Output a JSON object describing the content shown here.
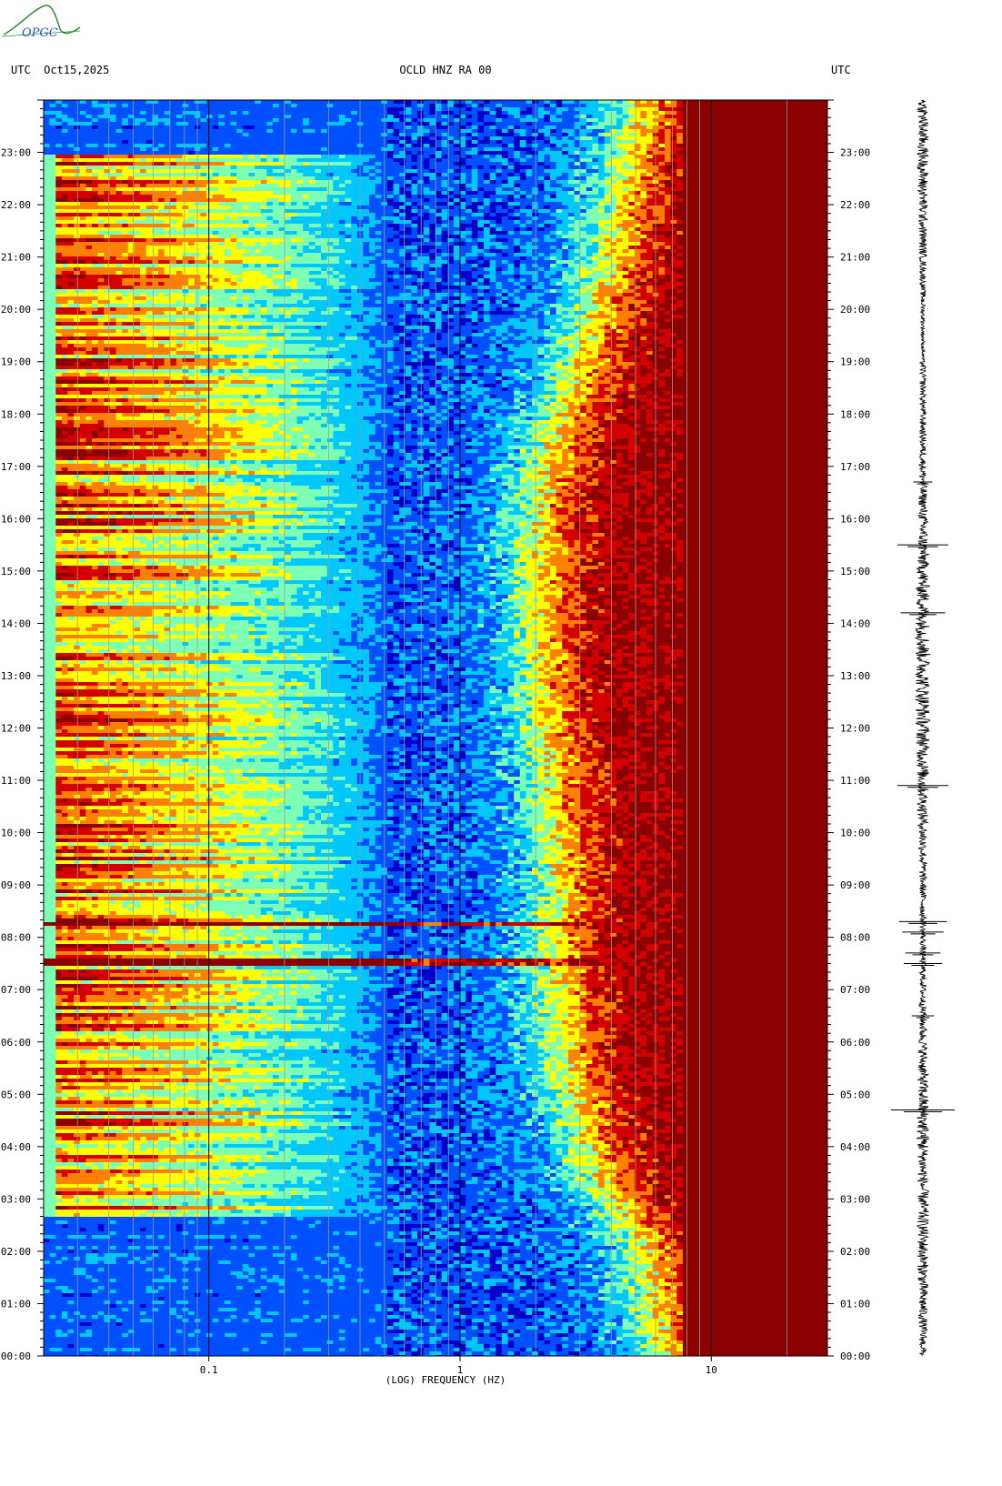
{
  "header": {
    "left": "UTC  Oct15,2025",
    "center": "OCLD HNZ RA 00",
    "right": "UTC"
  },
  "logo": {
    "text": "OPGC"
  },
  "chart_data": {
    "type": "heatmap",
    "xlabel": "(LOG) FREQUENCY (HZ)",
    "x_scale": "log",
    "xlim": [
      0.022,
      29
    ],
    "x_ticks": [
      {
        "value": 0.1,
        "label": "0.1"
      },
      {
        "value": 1,
        "label": "1"
      },
      {
        "value": 10,
        "label": "10"
      }
    ],
    "ylim": [
      0,
      24
    ],
    "y_unit": "hours UTC",
    "y_ticks": [
      {
        "value": 0,
        "label": "00:00"
      },
      {
        "value": 1,
        "label": "01:00"
      },
      {
        "value": 2,
        "label": "02:00"
      },
      {
        "value": 3,
        "label": "03:00"
      },
      {
        "value": 4,
        "label": "04:00"
      },
      {
        "value": 5,
        "label": "05:00"
      },
      {
        "value": 6,
        "label": "06:00"
      },
      {
        "value": 7,
        "label": "07:00"
      },
      {
        "value": 8,
        "label": "08:00"
      },
      {
        "value": 9,
        "label": "09:00"
      },
      {
        "value": 10,
        "label": "10:00"
      },
      {
        "value": 11,
        "label": "11:00"
      },
      {
        "value": 12,
        "label": "12:00"
      },
      {
        "value": 13,
        "label": "13:00"
      },
      {
        "value": 14,
        "label": "14:00"
      },
      {
        "value": 15,
        "label": "15:00"
      },
      {
        "value": 16,
        "label": "16:00"
      },
      {
        "value": 17,
        "label": "17:00"
      },
      {
        "value": 18,
        "label": "18:00"
      },
      {
        "value": 19,
        "label": "19:00"
      },
      {
        "value": 20,
        "label": "20:00"
      },
      {
        "value": 21,
        "label": "21:00"
      },
      {
        "value": 22,
        "label": "22:00"
      },
      {
        "value": 23,
        "label": "23:00"
      }
    ],
    "colormap": [
      "#0000c8",
      "#0050ff",
      "#00c8ff",
      "#7dffb4",
      "#ffff00",
      "#ff8000",
      "#d40000",
      "#8b0000"
    ],
    "noise_edge_hz": [
      [
        0,
        6.5
      ],
      [
        1,
        6.0
      ],
      [
        2,
        5.5
      ],
      [
        2.8,
        4.5
      ],
      [
        3.5,
        3.5
      ],
      [
        4.5,
        3.0
      ],
      [
        6,
        2.6
      ],
      [
        8,
        2.4
      ],
      [
        9,
        2.5
      ],
      [
        11,
        2.3
      ],
      [
        13,
        2.1
      ],
      [
        15,
        2.0
      ],
      [
        16,
        2.05
      ],
      [
        17,
        2.2
      ],
      [
        18,
        2.5
      ],
      [
        19,
        3.0
      ],
      [
        20,
        3.4
      ],
      [
        21,
        3.9
      ],
      [
        22,
        4.3
      ],
      [
        23,
        4.8
      ],
      [
        24,
        5.2
      ]
    ],
    "low_freq_energetic_hours": [
      2.7,
      23.0
    ],
    "events": [
      {
        "time": 8.3,
        "fmax_hz": 4.0,
        "label": ""
      },
      {
        "time": 7.55,
        "fmax_hz": 3.5,
        "label": ""
      }
    ],
    "seismogram_spikes": [
      {
        "time": 4.7,
        "amplitude": 1.0
      },
      {
        "time": 6.5,
        "amplitude": 0.35
      },
      {
        "time": 7.5,
        "amplitude": 0.6
      },
      {
        "time": 7.7,
        "amplitude": 0.55
      },
      {
        "time": 8.1,
        "amplitude": 0.65
      },
      {
        "time": 8.3,
        "amplitude": 0.75
      },
      {
        "time": 10.9,
        "amplitude": 0.8
      },
      {
        "time": 14.2,
        "amplitude": 0.7
      },
      {
        "time": 15.5,
        "amplitude": 0.8
      },
      {
        "time": 16.7,
        "amplitude": 0.3
      }
    ]
  }
}
